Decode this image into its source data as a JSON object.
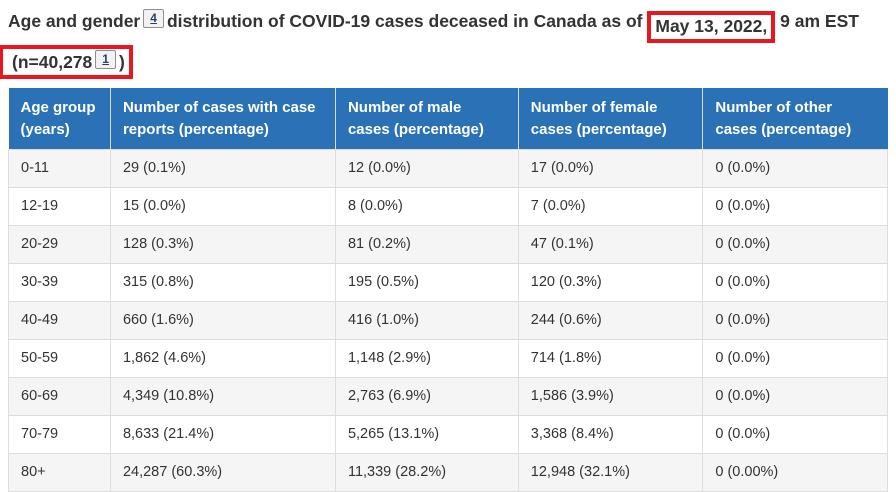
{
  "title": {
    "part1": "Age and gender",
    "footnote4_label": "4",
    "part2": "distribution of COVID-19 cases deceased in Canada as of",
    "highlighted_date": "May 13, 2022,",
    "part3": "9 am EST",
    "n_open": "(n=40,278",
    "footnote1_label": "1",
    "n_close": ")"
  },
  "annotations": {
    "box_color": "#e8171f",
    "date_box_contains": "May 13, 2022,",
    "n_box_contains": "(n=40,278 1 )"
  },
  "colors": {
    "header_background": "#2a72b5",
    "header_text": "#ffffff",
    "body_text": "#333333",
    "row_stripe": "#f5f5f5",
    "cell_border": "#dddddd",
    "footnote_link": "#284162"
  },
  "table": {
    "headers": [
      "Age group (years)",
      "Number of cases with case reports (percentage)",
      "Number of male cases (percentage)",
      "Number of female cases (percentage)",
      "Number of other cases (percentage)"
    ],
    "rows": [
      {
        "cells": [
          "0-11",
          "29 (0.1%)",
          "12 (0.0%)",
          "17 (0.0%)",
          "0 (0.0%)"
        ]
      },
      {
        "cells": [
          "12-19",
          "15 (0.0%)",
          "8 (0.0%)",
          "7 (0.0%)",
          "0 (0.0%)"
        ]
      },
      {
        "cells": [
          "20-29",
          "128 (0.3%)",
          "81 (0.2%)",
          "47 (0.1%)",
          "0 (0.0%)"
        ]
      },
      {
        "cells": [
          "30-39",
          "315 (0.8%)",
          "195 (0.5%)",
          "120 (0.3%)",
          "0 (0.0%)"
        ]
      },
      {
        "cells": [
          "40-49",
          "660 (1.6%)",
          "416 (1.0%)",
          "244 (0.6%)",
          "0 (0.0%)"
        ]
      },
      {
        "cells": [
          "50-59",
          "1,862 (4.6%)",
          "1,148 (2.9%)",
          "714 (1.8%)",
          "0 (0.0%)"
        ]
      },
      {
        "cells": [
          "60-69",
          "4,349 (10.8%)",
          "2,763 (6.9%)",
          "1,586 (3.9%)",
          "0 (0.0%)"
        ]
      },
      {
        "cells": [
          "70-79",
          "8,633 (21.4%)",
          "5,265 (13.1%)",
          "3,368 (8.4%)",
          "0 (0.0%)"
        ]
      },
      {
        "cells": [
          "80+",
          "24,287 (60.3%)",
          "11,339 (28.2%)",
          "12,948 (32.1%)",
          "0 (0.00%)"
        ]
      }
    ]
  }
}
